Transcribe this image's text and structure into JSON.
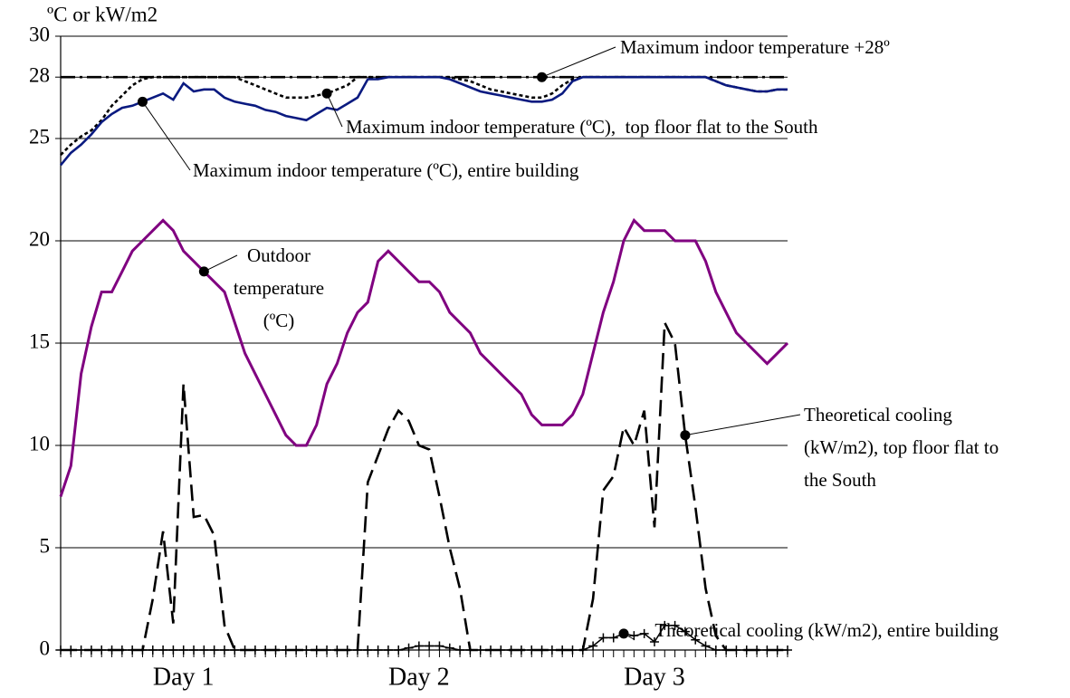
{
  "chart_data": {
    "type": "line",
    "y_axis_label": "ºC or kW/m2",
    "categories": [
      null,
      null,
      null,
      null,
      null,
      null,
      null,
      null,
      null,
      null,
      null,
      null,
      "Day 1",
      null,
      null,
      null,
      null,
      null,
      null,
      null,
      null,
      null,
      null,
      null,
      null,
      null,
      null,
      null,
      null,
      null,
      null,
      null,
      null,
      null,
      null,
      "Day 2",
      null,
      null,
      null,
      null,
      null,
      null,
      null,
      null,
      null,
      null,
      null,
      null,
      null,
      null,
      null,
      null,
      null,
      null,
      null,
      null,
      null,
      null,
      "Day 3",
      null,
      null,
      null,
      null,
      null,
      null,
      null,
      null,
      null,
      null,
      null,
      null,
      null
    ],
    "ylim": [
      0,
      30
    ],
    "yticks": [
      0,
      5,
      10,
      15,
      20,
      25,
      28,
      30
    ],
    "grid": true,
    "series": [
      {
        "name": "Maximum indoor temperature +28º",
        "color": "#000000",
        "style": "dashdot",
        "values": [
          28,
          28,
          28,
          28,
          28,
          28,
          28,
          28,
          28,
          28,
          28,
          28,
          28,
          28,
          28,
          28,
          28,
          28,
          28,
          28,
          28,
          28,
          28,
          28,
          28,
          28,
          28,
          28,
          28,
          28,
          28,
          28,
          28,
          28,
          28,
          28,
          28,
          28,
          28,
          28,
          28,
          28,
          28,
          28,
          28,
          28,
          28,
          28,
          28,
          28,
          28,
          28,
          28,
          28,
          28,
          28,
          28,
          28,
          28,
          28,
          28,
          28,
          28,
          28,
          28,
          28,
          28,
          28,
          28,
          28,
          28,
          28
        ]
      },
      {
        "name": "Maximum indoor temperature (ºC),  top floor flat to the South",
        "color": "#000000",
        "style": "dotted",
        "values": [
          24.2,
          24.7,
          25.1,
          25.4,
          25.9,
          26.6,
          27.1,
          27.6,
          27.9,
          28,
          28,
          28,
          28,
          28,
          28,
          28,
          28,
          28,
          27.8,
          27.6,
          27.4,
          27.2,
          27,
          27,
          27,
          27.1,
          27.2,
          27.4,
          27.6,
          28,
          28,
          28,
          28,
          28,
          28,
          28,
          28,
          28,
          28,
          27.9,
          27.8,
          27.6,
          27.4,
          27.3,
          27.2,
          27.1,
          27,
          27,
          27.2,
          27.6,
          27.9,
          28,
          28,
          28,
          28,
          28,
          28,
          28,
          28,
          28,
          28,
          28,
          28,
          28,
          27.8,
          27.6,
          27.5,
          27.4,
          27.3,
          27.3,
          27.4,
          27.4
        ]
      },
      {
        "name": "Maximum indoor temperature (ºC), entire building",
        "color": "#0a1a80",
        "style": "solid",
        "values": [
          23.7,
          24.3,
          24.7,
          25.2,
          25.8,
          26.2,
          26.5,
          26.6,
          26.8,
          27,
          27.2,
          26.9,
          27.7,
          27.3,
          27.4,
          27.4,
          27,
          26.8,
          26.7,
          26.6,
          26.4,
          26.3,
          26.1,
          26,
          25.9,
          26.2,
          26.5,
          26.4,
          26.7,
          27,
          27.9,
          27.9,
          28,
          28,
          28,
          28,
          28,
          28,
          27.9,
          27.7,
          27.5,
          27.3,
          27.2,
          27.1,
          27,
          26.9,
          26.8,
          26.8,
          26.9,
          27.2,
          27.8,
          28,
          28,
          28,
          28,
          28,
          28,
          28,
          28,
          28,
          28,
          28,
          28,
          28,
          27.8,
          27.6,
          27.5,
          27.4,
          27.3,
          27.3,
          27.4,
          27.4
        ]
      },
      {
        "name": "Outdoor temperature (ºC)",
        "color": "#800080",
        "style": "solid",
        "values": [
          7.5,
          9,
          13.5,
          15.8,
          17.5,
          17.5,
          18.5,
          19.5,
          20,
          20.5,
          21,
          20.5,
          19.5,
          19,
          18.5,
          18,
          17.5,
          16,
          14.5,
          13.5,
          12.5,
          11.5,
          10.5,
          10,
          10,
          11,
          13,
          14,
          15.5,
          16.5,
          17,
          19,
          19.5,
          19,
          18.5,
          18,
          18,
          17.5,
          16.5,
          16,
          15.5,
          14.5,
          14,
          13.5,
          13,
          12.5,
          11.5,
          11,
          11,
          11,
          11.5,
          12.5,
          14.5,
          16.5,
          18,
          20,
          21,
          20.5,
          20.5,
          20.5,
          20,
          20,
          20,
          19,
          17.5,
          16.5,
          15.5,
          15,
          14.5,
          14,
          14.5,
          15
        ]
      },
      {
        "name": "Theoretical cooling (kW/m2), top floor flat to the South",
        "color": "#000000",
        "style": "dashed",
        "values": [
          0,
          0,
          0,
          0,
          0,
          0,
          0,
          0,
          0,
          2.5,
          5.8,
          1.3,
          13,
          6.5,
          6.6,
          5.6,
          1.2,
          0,
          0,
          0,
          0,
          0,
          0,
          0,
          0,
          0,
          0,
          0,
          0,
          0,
          8.2,
          9.5,
          10.8,
          11.7,
          11.2,
          10,
          9.8,
          7.5,
          5,
          3,
          0,
          0,
          0,
          0,
          0,
          0,
          0,
          0,
          0,
          0,
          0,
          0,
          2.5,
          7.8,
          8.5,
          10.9,
          10,
          11.7,
          6,
          16,
          15,
          10.5,
          7,
          3,
          0.7,
          0,
          0,
          0,
          0,
          0,
          0,
          0
        ]
      },
      {
        "name": "Theoretical cooling (kW/m2), entire building",
        "color": "#000000",
        "style": "solid",
        "marker": "+",
        "values": [
          0,
          0,
          0,
          0,
          0,
          0,
          0,
          0,
          0,
          0,
          0,
          0,
          0,
          0,
          0,
          0,
          0,
          0,
          0,
          0,
          0,
          0,
          0,
          0,
          0,
          0,
          0,
          0,
          0,
          0,
          0,
          0,
          0,
          0,
          0.1,
          0.2,
          0.2,
          0.2,
          0.1,
          0,
          0,
          0,
          0,
          0,
          0,
          0,
          0,
          0,
          0,
          0,
          0,
          0,
          0.2,
          0.6,
          0.6,
          0.8,
          0.7,
          0.8,
          0.4,
          1.2,
          1.2,
          0.9,
          0.5,
          0.2,
          0,
          0,
          0,
          0,
          0,
          0,
          0,
          0
        ]
      }
    ]
  }
}
